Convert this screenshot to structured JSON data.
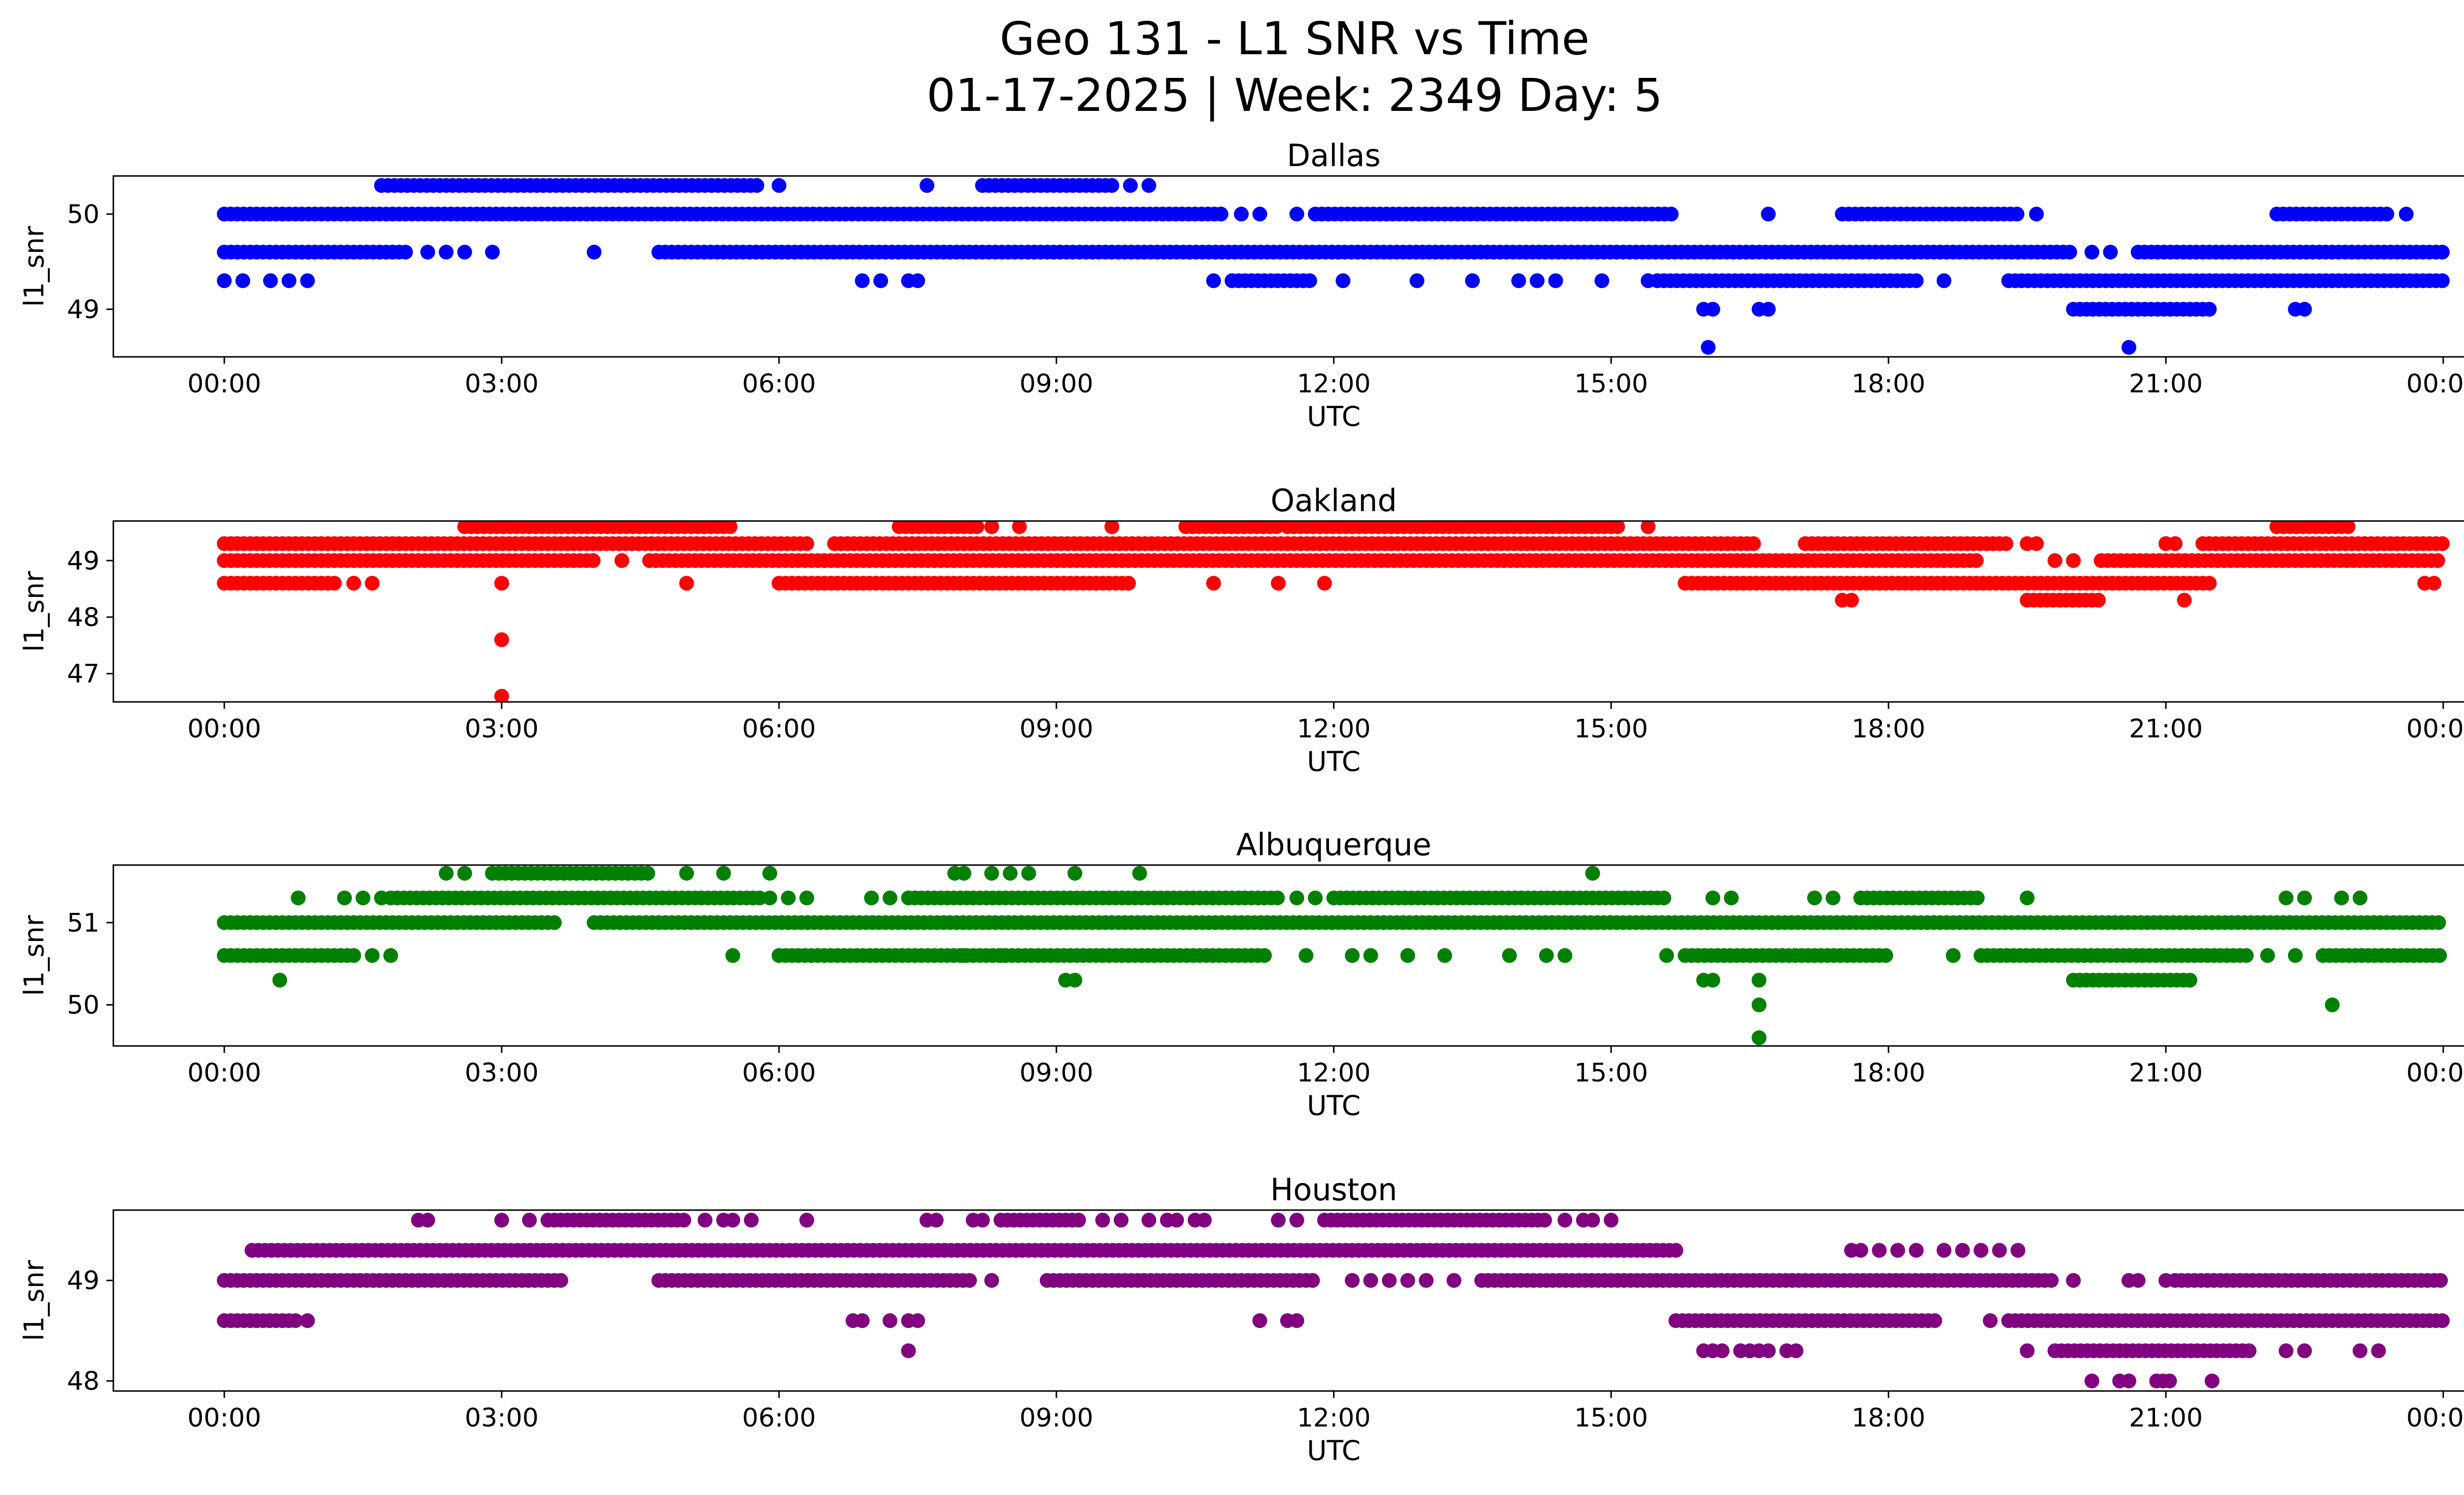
{
  "figure": {
    "title_line1": "Geo 131 - L1 SNR vs Time",
    "title_line2": "01-17-2025 | Week: 2349 Day: 5"
  },
  "chart_data": [
    {
      "type": "scatter",
      "title": "Dallas",
      "xlabel": "UTC",
      "ylabel": "l1_snr",
      "color": "#0000ff",
      "x_ticks": [
        "00:00",
        "03:00",
        "06:00",
        "09:00",
        "12:00",
        "15:00",
        "18:00",
        "21:00",
        "00:00"
      ],
      "x_range_hours": [
        -1.2,
        25.2
      ],
      "ylim": [
        48.5,
        50.4
      ],
      "y_ticks": [
        49,
        50
      ],
      "bands": [
        {
          "y": 50.3,
          "ranges": [
            [
              1.7,
              5.8
            ],
            [
              8.2,
              9.6
            ]
          ],
          "points": [
            6.0,
            7.6,
            9.8,
            10.0
          ]
        },
        {
          "y": 50.0,
          "ranges": [
            [
              0.0,
              10.8
            ],
            [
              11.8,
              15.7
            ],
            [
              17.5,
              19.4
            ],
            [
              22.2,
              23.4
            ]
          ],
          "points": [
            11.0,
            11.2,
            11.6,
            16.7,
            19.6,
            23.6
          ]
        },
        {
          "y": 49.6,
          "ranges": [
            [
              0.0,
              2.0
            ],
            [
              4.7,
              20.0
            ],
            [
              20.7,
              24.0
            ]
          ],
          "points": [
            2.2,
            2.4,
            2.6,
            2.9,
            4.0,
            20.2,
            20.4
          ]
        },
        {
          "y": 49.3,
          "ranges": [
            [
              10.9,
              11.8
            ],
            [
              15.5,
              18.3
            ],
            [
              19.3,
              24.0
            ]
          ],
          "points": [
            0.0,
            0.2,
            0.5,
            0.7,
            0.9,
            6.9,
            7.1,
            7.4,
            7.5,
            10.7,
            12.1,
            12.9,
            13.5,
            14.0,
            14.2,
            14.4,
            14.9,
            15.4,
            18.6
          ]
        },
        {
          "y": 49.0,
          "ranges": [
            [
              20.0,
              21.5
            ]
          ],
          "points": [
            16.0,
            16.1,
            16.6,
            16.7,
            22.4,
            22.5
          ]
        },
        {
          "y": 48.6,
          "ranges": [],
          "points": [
            16.05,
            20.6
          ]
        }
      ]
    },
    {
      "type": "scatter",
      "title": "Oakland",
      "xlabel": "UTC",
      "ylabel": "l1_snr",
      "color": "#ff0000",
      "x_ticks": [
        "00:00",
        "03:00",
        "06:00",
        "09:00",
        "12:00",
        "15:00",
        "18:00",
        "21:00",
        "00:00"
      ],
      "x_range_hours": [
        -1.2,
        25.2
      ],
      "ylim": [
        46.5,
        49.7
      ],
      "y_ticks": [
        47,
        48,
        49
      ],
      "bands": [
        {
          "y": 49.6,
          "ranges": [
            [
              2.6,
              5.5
            ],
            [
              7.3,
              8.2
            ],
            [
              10.4,
              11.4
            ],
            [
              11.5,
              15.1
            ],
            [
              22.2,
              23.0
            ]
          ],
          "points": [
            8.3,
            8.6,
            9.6,
            15.4
          ]
        },
        {
          "y": 49.3,
          "ranges": [
            [
              0.0,
              6.3
            ],
            [
              6.6,
              16.6
            ],
            [
              17.1,
              19.3
            ],
            [
              21.4,
              24.0
            ]
          ],
          "points": [
            19.5,
            19.6,
            21.0,
            21.1
          ]
        },
        {
          "y": 49.0,
          "ranges": [
            [
              0.0,
              4.0
            ],
            [
              4.6,
              19.0
            ],
            [
              20.3,
              24.0
            ]
          ],
          "points": [
            4.3,
            19.8,
            20.0
          ]
        },
        {
          "y": 48.6,
          "ranges": [
            [
              0.0,
              1.2
            ],
            [
              6.0,
              9.8
            ],
            [
              15.8,
              21.5
            ]
          ],
          "points": [
            1.4,
            1.6,
            3.0,
            5.0,
            10.7,
            11.4,
            11.9,
            23.8,
            23.9
          ]
        },
        {
          "y": 48.3,
          "ranges": [
            [
              19.5,
              20.3
            ]
          ],
          "points": [
            17.5,
            17.6,
            21.2
          ]
        },
        {
          "y": 47.6,
          "ranges": [],
          "points": [
            3.0
          ]
        },
        {
          "y": 46.6,
          "ranges": [],
          "points": [
            3.0
          ]
        }
      ]
    },
    {
      "type": "scatter",
      "title": "Albuquerque",
      "xlabel": "UTC",
      "ylabel": "l1_snr",
      "color": "#008000",
      "x_ticks": [
        "00:00",
        "03:00",
        "06:00",
        "09:00",
        "12:00",
        "15:00",
        "18:00",
        "21:00",
        "00:00"
      ],
      "x_range_hours": [
        -1.2,
        25.2
      ],
      "ylim": [
        49.5,
        51.7
      ],
      "y_ticks": [
        50,
        51
      ],
      "bands": [
        {
          "y": 51.6,
          "ranges": [
            [
              2.9,
              4.6
            ]
          ],
          "points": [
            2.4,
            2.6,
            5.0,
            5.4,
            5.9,
            7.9,
            8.0,
            8.3,
            8.5,
            8.7,
            9.2,
            9.9,
            14.8
          ]
        },
        {
          "y": 51.3,
          "ranges": [
            [
              1.8,
              5.8
            ],
            [
              7.4,
              11.4
            ],
            [
              12.0,
              15.6
            ],
            [
              17.7,
              19.0
            ]
          ],
          "points": [
            0.8,
            1.3,
            1.5,
            1.7,
            5.9,
            6.1,
            6.3,
            7.0,
            7.2,
            11.6,
            11.8,
            16.1,
            16.3,
            17.2,
            17.4,
            19.5,
            22.3,
            22.5,
            22.9,
            23.1
          ]
        },
        {
          "y": 51.0,
          "ranges": [
            [
              0.0,
              3.6
            ],
            [
              4.0,
              24.0
            ]
          ],
          "points": []
        },
        {
          "y": 50.6,
          "ranges": [
            [
              0.0,
              1.4
            ],
            [
              6.0,
              11.3
            ],
            [
              15.8,
              18.0
            ],
            [
              19.0,
              21.9
            ],
            [
              22.7,
              24.0
            ]
          ],
          "points": [
            1.6,
            1.8,
            5.5,
            8.0,
            8.4,
            11.7,
            12.2,
            12.4,
            12.8,
            13.2,
            13.9,
            14.3,
            14.5,
            15.6,
            18.7,
            22.1,
            22.4
          ]
        },
        {
          "y": 50.3,
          "ranges": [
            [
              20.0,
              21.3
            ]
          ],
          "points": [
            0.6,
            9.1,
            9.2,
            16.0,
            16.1,
            16.6
          ]
        },
        {
          "y": 50.0,
          "ranges": [],
          "points": [
            16.6,
            22.8
          ]
        },
        {
          "y": 49.6,
          "ranges": [],
          "points": [
            16.6
          ]
        }
      ]
    },
    {
      "type": "scatter",
      "title": "Houston",
      "xlabel": "UTC",
      "ylabel": "l1_snr",
      "color": "#800080",
      "x_ticks": [
        "00:00",
        "03:00",
        "06:00",
        "09:00",
        "12:00",
        "15:00",
        "18:00",
        "21:00",
        "00:00"
      ],
      "x_range_hours": [
        -1.2,
        25.2
      ],
      "ylim": [
        47.9,
        49.7
      ],
      "y_ticks": [
        48,
        49
      ],
      "bands": [
        {
          "y": 49.6,
          "ranges": [
            [
              3.5,
              5.0
            ],
            [
              8.4,
              9.3
            ],
            [
              11.9,
              14.3
            ]
          ],
          "points": [
            2.1,
            2.2,
            3.0,
            3.3,
            5.2,
            5.4,
            5.5,
            5.7,
            6.3,
            7.6,
            7.7,
            8.1,
            8.2,
            9.5,
            9.7,
            10.0,
            10.2,
            10.3,
            10.5,
            10.6,
            11.4,
            11.6,
            14.5,
            14.7,
            14.8,
            15.0
          ]
        },
        {
          "y": 49.3,
          "ranges": [
            [
              0.3,
              15.7
            ]
          ],
          "points": [
            17.6,
            17.7,
            17.9,
            18.1,
            18.3,
            18.6,
            18.8,
            19.0,
            19.2,
            19.4
          ]
        },
        {
          "y": 49.0,
          "ranges": [
            [
              0.0,
              3.7
            ],
            [
              4.7,
              8.1
            ],
            [
              8.9,
              11.8
            ],
            [
              13.6,
              19.8
            ]
          ],
          "points": [
            8.3,
            12.2,
            12.4,
            12.6,
            12.8,
            13.0,
            13.3,
            20.0,
            20.6,
            20.7,
            21.0
          ]
        },
        {
          "y": 49.0,
          "ranges": [
            [
              21.1,
              24.0
            ]
          ],
          "points": []
        },
        {
          "y": 48.6,
          "ranges": [
            [
              0.0,
              0.8
            ],
            [
              15.7,
              18.5
            ],
            [
              19.3,
              24.0
            ]
          ],
          "points": [
            0.9,
            6.8,
            6.9,
            7.2,
            7.4,
            7.5,
            11.2,
            11.5,
            11.6,
            19.1
          ]
        },
        {
          "y": 48.3,
          "ranges": [
            [
              19.8,
              21.9
            ]
          ],
          "points": [
            7.4,
            16.0,
            16.1,
            16.2,
            16.4,
            16.5,
            16.6,
            16.7,
            16.9,
            17.0,
            19.5,
            22.3,
            22.5,
            23.1,
            23.3
          ]
        },
        {
          "y": 48.0,
          "ranges": [
            [
              20.9,
              21.1
            ]
          ],
          "points": [
            20.2,
            20.5,
            20.6,
            21.5
          ]
        }
      ]
    }
  ]
}
